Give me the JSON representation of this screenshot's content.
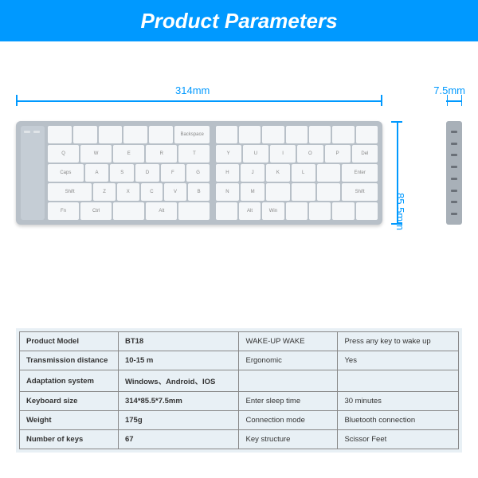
{
  "header": {
    "title": "Product Parameters",
    "bg": "#0099ff"
  },
  "dimensions": {
    "width": "314mm",
    "thickness": "7.5mm",
    "height": "85.5mm",
    "line_color": "#0099ff"
  },
  "keyboard": {
    "body_color": "#b8c0c8",
    "key_color": "#f5f7f9",
    "left_rows": [
      [
        "",
        "",
        "",
        "",
        "",
        "Backspace"
      ],
      [
        "Q",
        "W",
        "E",
        "R",
        "T"
      ],
      [
        "A",
        "S",
        "D",
        "F",
        "G"
      ],
      [
        "Z",
        "X",
        "C",
        "V",
        "B"
      ],
      [
        "Fn",
        "Ctrl",
        "",
        "Alt",
        ""
      ]
    ],
    "right_rows": [
      [
        "",
        "",
        "",
        "",
        "",
        "",
        ""
      ],
      [
        "Y",
        "U",
        "I",
        "O",
        "P",
        "Del"
      ],
      [
        "H",
        "J",
        "K",
        "L",
        "",
        "Enter"
      ],
      [
        "N",
        "M",
        "",
        "",
        "",
        "Shift"
      ],
      [
        "",
        "Alt",
        "Win",
        "",
        "",
        "",
        ""
      ]
    ],
    "left_wide_first": "Caps",
    "left_wide_shift": "Shift"
  },
  "spec_table": {
    "bg": "#e8f0f5",
    "border_color": "#888888",
    "rows": [
      {
        "l1": "Product Model",
        "v1": "BT18",
        "l2": "WAKE-UP WAKE",
        "v2": "Press any key to wake up"
      },
      {
        "l1": "Transmission distance",
        "v1": "10-15 m",
        "l2": "Ergonomic",
        "v2": "Yes"
      },
      {
        "l1": "Adaptation system",
        "v1": "Windows、Android、IOS",
        "l2": "",
        "v2": ""
      },
      {
        "l1": "Keyboard size",
        "v1": "314*85.5*7.5mm",
        "l2": "Enter sleep time",
        "v2": "30 minutes"
      },
      {
        "l1": "Weight",
        "v1": "175g",
        "l2": "Connection mode",
        "v2": "Bluetooth connection"
      },
      {
        "l1": "Number of keys",
        "v1": "67",
        "l2": "Key structure",
        "v2": "Scissor Feet"
      }
    ]
  }
}
